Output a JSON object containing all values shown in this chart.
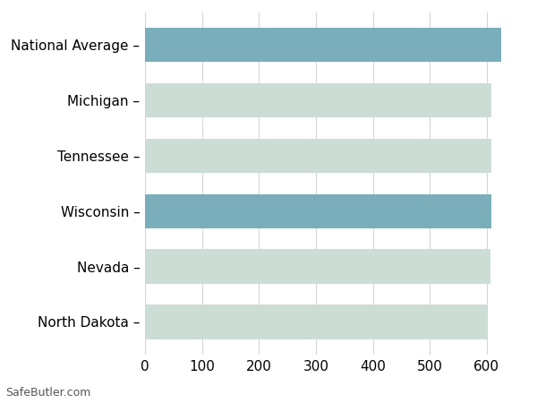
{
  "categories": [
    "National Average",
    "Michigan",
    "Tennessee",
    "Wisconsin",
    "Nevada",
    "North Dakota"
  ],
  "values": [
    625,
    608,
    608,
    608,
    606,
    600
  ],
  "bar_colors": [
    "#7aaebb",
    "#ccddd6",
    "#ccddd6",
    "#7aaebb",
    "#ccddd6",
    "#ccddd6"
  ],
  "xlim": [
    0,
    660
  ],
  "xticks": [
    0,
    100,
    200,
    300,
    400,
    500,
    600
  ],
  "background_color": "#ffffff",
  "grid_color": "#d0d8d0",
  "bar_height": 0.62,
  "footer_text": "SafeButler.com",
  "label_fontsize": 11,
  "tick_fontsize": 11
}
